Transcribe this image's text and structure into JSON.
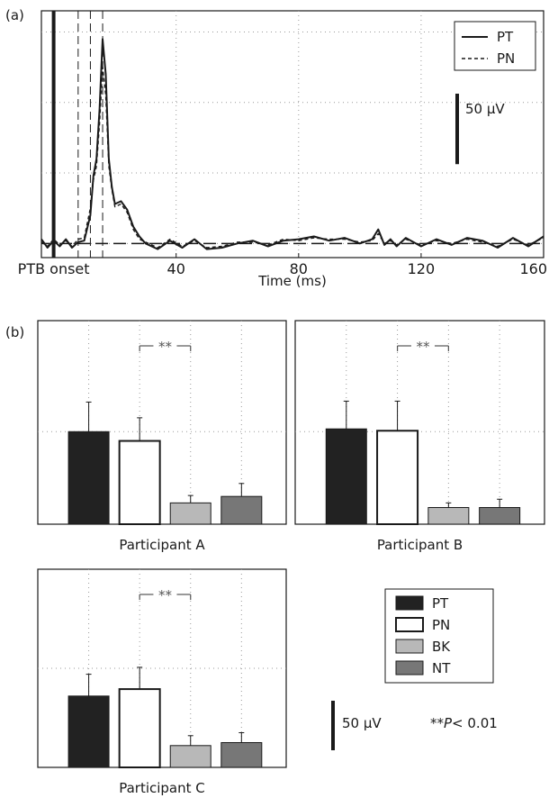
{
  "figure": {
    "panel_a_tag": "(a)",
    "panel_b_tag": "(b)"
  },
  "chart_data": [
    {
      "id": "a",
      "type": "line",
      "xlabel": "Time (ms)",
      "ylabel": "",
      "xlim": [
        -4,
        160
      ],
      "x_ticks": [
        0,
        40,
        80,
        120,
        160
      ],
      "x_tick_labels": [
        "PTB onset",
        "40",
        "80",
        "120",
        "160"
      ],
      "ylim": [
        -10,
        165
      ],
      "grid": "dotted",
      "onset_ms": 0,
      "window_ms": [
        8,
        12,
        16
      ],
      "window_end_ms": 16,
      "baseline_uv": 0,
      "scale_bar_label": "50 μV",
      "scale_bar_uv": 50,
      "legend": {
        "position": "top-right",
        "entries": [
          "PT",
          "PN"
        ]
      },
      "series": [
        {
          "name": "PT",
          "style": "solid",
          "x": [
            -4,
            -2,
            0,
            2,
            4,
            6,
            8,
            10,
            12,
            13,
            14,
            15,
            16,
            17,
            18,
            19,
            20,
            22,
            24,
            26,
            28,
            30,
            34,
            38,
            42,
            46,
            50,
            55,
            60,
            65,
            70,
            75,
            80,
            85,
            90,
            95,
            100,
            104,
            106,
            108,
            110,
            112,
            115,
            120,
            125,
            130,
            135,
            140,
            145,
            150,
            155,
            160
          ],
          "y": [
            3,
            -3,
            2,
            -2,
            3,
            -3,
            1,
            2,
            20,
            48,
            60,
            95,
            145,
            120,
            60,
            40,
            28,
            30,
            24,
            12,
            5,
            0,
            -4,
            2,
            -3,
            3,
            -4,
            -3,
            0,
            2,
            -2,
            2,
            3,
            5,
            2,
            4,
            0,
            3,
            10,
            -1,
            3,
            -2,
            4,
            -2,
            3,
            -1,
            4,
            2,
            -3,
            4,
            -2,
            5
          ]
        },
        {
          "name": "PN",
          "style": "dashed",
          "x": [
            -4,
            -2,
            0,
            2,
            4,
            6,
            8,
            10,
            12,
            13,
            14,
            15,
            16,
            17,
            18,
            19,
            20,
            22,
            24,
            26,
            28,
            30,
            34,
            38,
            42,
            46,
            50,
            55,
            60,
            65,
            70,
            75,
            80,
            85,
            90,
            95,
            100,
            104,
            106,
            108,
            110,
            112,
            115,
            120,
            125,
            130,
            135,
            140,
            145,
            150,
            155,
            160
          ],
          "y": [
            1,
            -2,
            3,
            -1,
            2,
            -2,
            3,
            4,
            25,
            45,
            55,
            85,
            125,
            105,
            55,
            38,
            26,
            28,
            22,
            10,
            3,
            1,
            -3,
            3,
            -2,
            2,
            -3,
            -2,
            1,
            1,
            -1,
            3,
            2,
            4,
            3,
            3,
            1,
            2,
            7,
            0,
            2,
            -1,
            3,
            -1,
            2,
            0,
            3,
            1,
            -2,
            3,
            -1,
            4
          ]
        }
      ]
    },
    {
      "id": "b-A",
      "type": "bar",
      "title": "Participant A",
      "categories": [
        "PT",
        "PN",
        "BK",
        "NT"
      ],
      "values": [
        100,
        90,
        23,
        30
      ],
      "errors": [
        32,
        25,
        8,
        14
      ],
      "ylim": [
        0,
        220
      ],
      "grid": "dotted",
      "significance": {
        "between": [
          "PN",
          "BK"
        ],
        "label": "**"
      }
    },
    {
      "id": "b-B",
      "type": "bar",
      "title": "Participant B",
      "categories": [
        "PT",
        "PN",
        "BK",
        "NT"
      ],
      "values": [
        103,
        101,
        18,
        18
      ],
      "errors": [
        30,
        32,
        5,
        9
      ],
      "ylim": [
        0,
        220
      ],
      "grid": "dotted",
      "significance": {
        "between": [
          "PN",
          "BK"
        ],
        "label": "**"
      }
    },
    {
      "id": "b-C",
      "type": "bar",
      "title": "Participant C",
      "categories": [
        "PT",
        "PN",
        "BK",
        "NT"
      ],
      "values": [
        72,
        79,
        22,
        25
      ],
      "errors": [
        22,
        22,
        10,
        10
      ],
      "ylim": [
        0,
        200
      ],
      "grid": "dotted",
      "significance": {
        "between": [
          "PN",
          "BK"
        ],
        "label": "**"
      }
    }
  ],
  "bar_legend": {
    "entries": [
      {
        "label": "PT",
        "color": "#222222"
      },
      {
        "label": "PN",
        "color": "#ffffff"
      },
      {
        "label": "BK",
        "color": "#b8b8b8"
      },
      {
        "label": "NT",
        "color": "#777777"
      }
    ]
  },
  "bar_scale": {
    "label": "50 μV",
    "uv": 50
  },
  "significance_note": {
    "stars": "**",
    "p": "P",
    "rest": "< 0.01"
  },
  "colors": {
    "PT": "#222222",
    "PN": "#ffffff",
    "BK": "#b8b8b8",
    "NT": "#777777",
    "line": "#1a1a1a",
    "grid": "#9a9a9a"
  }
}
